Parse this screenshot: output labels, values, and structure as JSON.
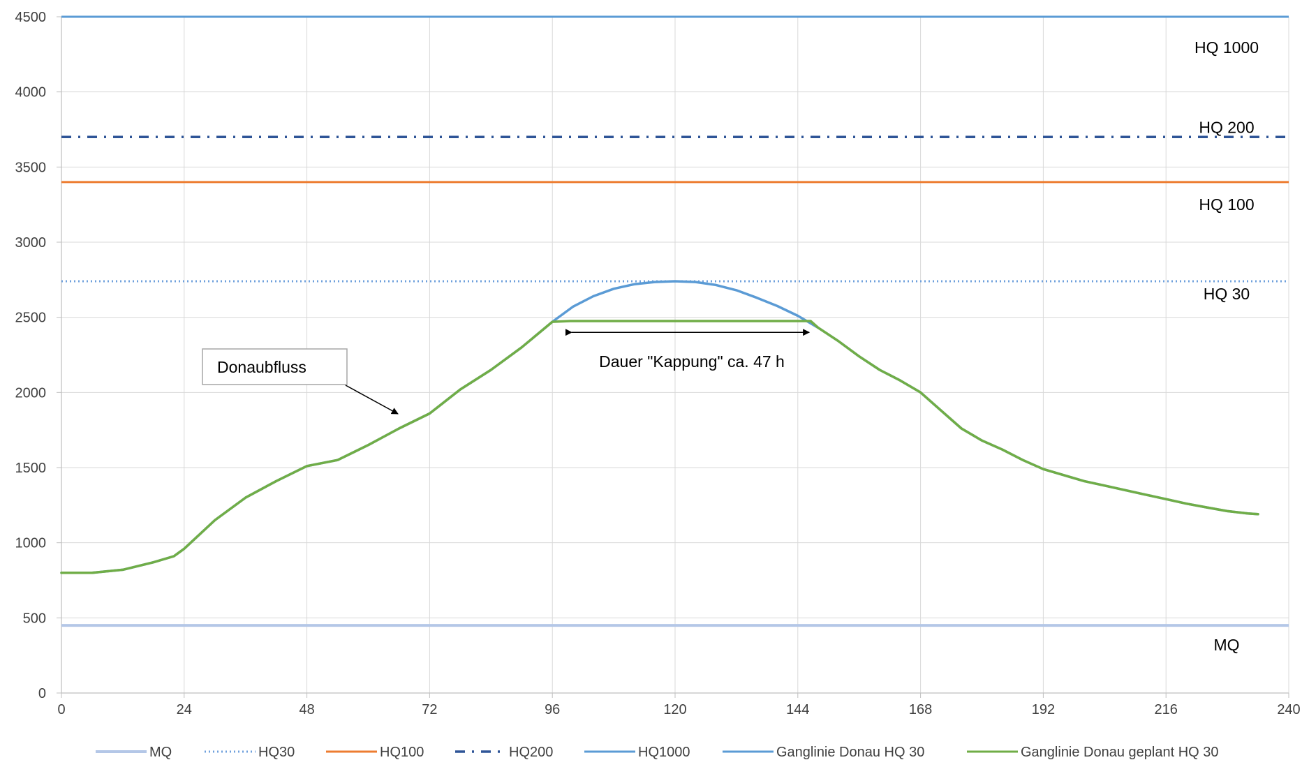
{
  "chart_data": {
    "type": "line",
    "title": "",
    "xlabel": "",
    "ylabel": "",
    "xlim": [
      0,
      240
    ],
    "ylim": [
      0,
      4500
    ],
    "x_ticks": [
      0,
      24,
      48,
      72,
      96,
      120,
      144,
      168,
      192,
      216,
      240
    ],
    "y_ticks": [
      0,
      500,
      1000,
      1500,
      2000,
      2500,
      3000,
      3500,
      4000,
      4500
    ],
    "grid": true,
    "legend_position": "bottom",
    "reference_lines": [
      {
        "name": "MQ",
        "value": 450,
        "color": "#B4C7E7",
        "style": "solid",
        "label": "MQ"
      },
      {
        "name": "HQ30",
        "value": 2740,
        "color": "#6FA0DC",
        "style": "dotted",
        "label": "HQ 30"
      },
      {
        "name": "HQ100",
        "value": 3400,
        "color": "#ED7D31",
        "style": "solid",
        "label": "HQ 100"
      },
      {
        "name": "HQ200",
        "value": 3700,
        "color": "#2F5597",
        "style": "dashdot",
        "label": "HQ 200"
      },
      {
        "name": "HQ1000",
        "value": 4500,
        "color": "#5B9BD5",
        "style": "solid",
        "label": "HQ 1000"
      }
    ],
    "series": [
      {
        "name": "Ganglinie Donau HQ 30",
        "color": "#5B9BD5",
        "x": [
          0,
          6,
          12,
          18,
          22,
          24,
          30,
          36,
          42,
          48,
          54,
          60,
          66,
          72,
          78,
          84,
          90,
          96,
          100,
          104,
          108,
          112,
          116,
          120,
          124,
          128,
          132,
          136,
          140,
          144,
          148,
          152,
          156,
          160,
          164,
          168,
          172,
          176,
          180,
          184,
          188,
          192,
          196,
          200,
          204,
          208,
          212,
          216,
          220,
          224,
          228,
          232,
          234
        ],
        "values": [
          800,
          800,
          820,
          870,
          910,
          960,
          1150,
          1300,
          1410,
          1510,
          1550,
          1650,
          1760,
          1860,
          2020,
          2150,
          2300,
          2470,
          2570,
          2640,
          2690,
          2720,
          2735,
          2740,
          2735,
          2715,
          2680,
          2630,
          2575,
          2510,
          2430,
          2340,
          2240,
          2150,
          2080,
          2000,
          1880,
          1760,
          1680,
          1620,
          1550,
          1490,
          1450,
          1410,
          1380,
          1350,
          1320,
          1290,
          1260,
          1235,
          1210,
          1195,
          1190
        ]
      },
      {
        "name": "Ganglinie Donau geplant HQ 30",
        "color": "#70AD47",
        "x": [
          0,
          6,
          12,
          18,
          22,
          24,
          30,
          36,
          42,
          48,
          54,
          60,
          66,
          72,
          78,
          84,
          90,
          96,
          99.5,
          146.5,
          148,
          152,
          156,
          160,
          164,
          168,
          172,
          176,
          180,
          184,
          188,
          192,
          196,
          200,
          204,
          208,
          212,
          216,
          220,
          224,
          228,
          232,
          234
        ],
        "values": [
          800,
          800,
          820,
          870,
          910,
          960,
          1150,
          1300,
          1410,
          1510,
          1550,
          1650,
          1760,
          1860,
          2020,
          2150,
          2300,
          2470,
          2475,
          2475,
          2430,
          2340,
          2240,
          2150,
          2080,
          2000,
          1880,
          1760,
          1680,
          1620,
          1550,
          1490,
          1450,
          1410,
          1380,
          1350,
          1320,
          1290,
          1260,
          1235,
          1210,
          1195,
          1190
        ]
      }
    ],
    "annotations": {
      "box_label": "Donaubfluss",
      "box_label_display": "Donaubfluss",
      "duration_label": "Dauer \"Kappung\" ca. 47 h",
      "duration_range": [
        99.5,
        146.5
      ],
      "duration_value": 2400
    },
    "legend": [
      "MQ",
      "HQ30",
      "HQ100",
      "HQ200",
      "HQ1000",
      "Ganglinie Donau HQ 30",
      "Ganglinie Donau geplant HQ 30"
    ]
  }
}
